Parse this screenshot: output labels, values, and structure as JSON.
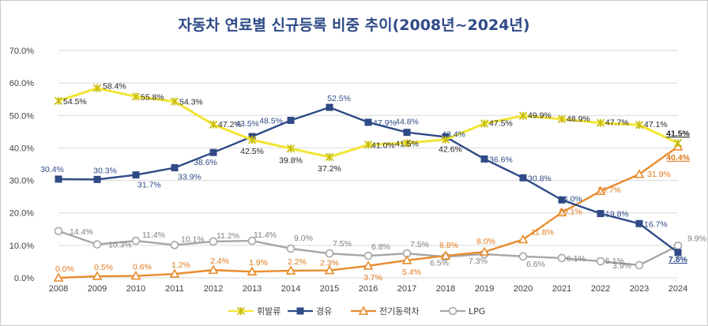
{
  "chart_data": {
    "type": "line",
    "title": "자동차 연료별 신규등록 비중 추이(2008년~2024년)",
    "categories": [
      "2008",
      "2009",
      "2010",
      "2011",
      "2012",
      "2013",
      "2014",
      "2015",
      "2016",
      "2017",
      "2018",
      "2019",
      "2020",
      "2021",
      "2022",
      "2023",
      "2024"
    ],
    "ylim": [
      0,
      70
    ],
    "yticks": [
      "0.0%",
      "10.0%",
      "20.0%",
      "30.0%",
      "40.0%",
      "50.0%",
      "60.0%",
      "70.0%"
    ],
    "grid": true,
    "legend_position": "bottom",
    "series": [
      {
        "name": "휘발류",
        "color": "#f2e533",
        "marker": "x",
        "values": [
          54.5,
          58.4,
          55.8,
          54.3,
          47.2,
          42.5,
          39.8,
          37.2,
          41.0,
          41.5,
          42.6,
          47.5,
          49.9,
          48.9,
          47.7,
          47.1,
          41.5
        ],
        "labels": [
          "54.5%",
          "58.4%",
          "55.8%",
          "54.3%",
          "47.2%",
          "42.5%",
          "39.8%",
          "37.2%",
          "41.0%",
          "41.5%",
          "42.6%",
          "47.5%",
          "49.9%",
          "48.9%",
          "47.7%",
          "47.1%",
          "41.5%"
        ],
        "label_color": "#262626"
      },
      {
        "name": "경유",
        "color": "#2f4a86",
        "marker": "square",
        "values": [
          30.4,
          30.3,
          31.7,
          33.9,
          38.6,
          43.5,
          48.5,
          52.5,
          47.9,
          44.8,
          43.4,
          36.6,
          30.8,
          24.0,
          19.8,
          16.7,
          7.8
        ],
        "labels": [
          "30.4%",
          "30.3%",
          "31.7%",
          "33.9%",
          "38.6%",
          "43.5%",
          "48.5%",
          "52.5%",
          "47.9%",
          "44.8%",
          "43.4%",
          "36.6%",
          "30.8%",
          "24.0%",
          "19.8%",
          "16.7%",
          "7.8%"
        ],
        "label_color": "#2f4a86"
      },
      {
        "name": "전기동력차",
        "color": "#e88c2d",
        "marker": "triangle",
        "values": [
          0.0,
          0.5,
          0.6,
          1.2,
          2.4,
          1.9,
          2.2,
          2.3,
          3.7,
          5.4,
          6.8,
          8.0,
          11.8,
          20.1,
          26.7,
          31.9,
          40.4
        ],
        "labels": [
          "0.0%",
          "0.5%",
          "0.6%",
          "1.2%",
          "2.4%",
          "1.9%",
          "2.2%",
          "2.3%",
          "3.7%",
          "5.4%",
          "6.8%",
          "8.0%",
          "11.8%",
          "20.1%",
          "26.7%",
          "31.9%",
          "40.4%"
        ],
        "label_color": "#e07b1e"
      },
      {
        "name": "LPG",
        "color": "#a6a6a6",
        "marker": "circle",
        "values": [
          14.4,
          10.3,
          11.4,
          10.1,
          11.2,
          11.4,
          9.0,
          7.5,
          6.8,
          7.5,
          6.5,
          7.3,
          6.6,
          6.1,
          5.1,
          3.9,
          9.9
        ],
        "labels": [
          "14.4%",
          "10.3%",
          "11.4%",
          "10.1%",
          "11.2%",
          "11.4%",
          "9.0%",
          "7.5%",
          "6.8%",
          "7.5%",
          "6.5%",
          "7.3%",
          "6.6%",
          "6.1%",
          "5.1%",
          "3.9%",
          "9.9%"
        ],
        "label_color": "#7f7f7f"
      }
    ]
  }
}
